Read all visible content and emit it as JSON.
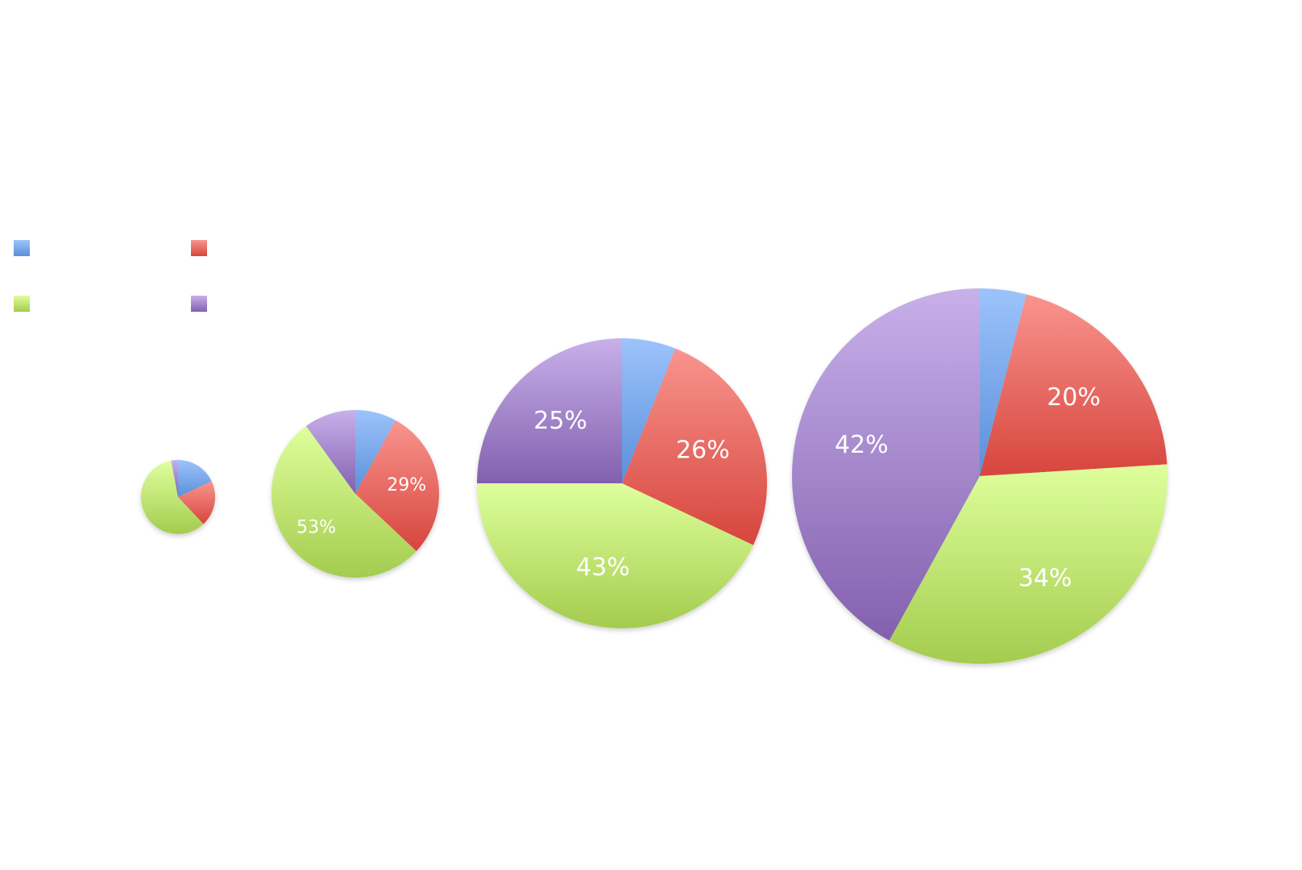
{
  "chart_data": [
    {
      "type": "pie",
      "slices": [
        {
          "series": 1,
          "value": 18,
          "label": ""
        },
        {
          "series": 2,
          "value": 20,
          "label": ""
        },
        {
          "series": 3,
          "value": 59,
          "label": ""
        },
        {
          "series": 4,
          "value": 3,
          "label": ""
        }
      ]
    },
    {
      "type": "pie",
      "slices": [
        {
          "series": 1,
          "value": 8,
          "label": ""
        },
        {
          "series": 2,
          "value": 29,
          "label": "29%"
        },
        {
          "series": 3,
          "value": 53,
          "label": "53%"
        },
        {
          "series": 4,
          "value": 10,
          "label": ""
        }
      ]
    },
    {
      "type": "pie",
      "slices": [
        {
          "series": 1,
          "value": 6,
          "label": ""
        },
        {
          "series": 2,
          "value": 26,
          "label": "26%"
        },
        {
          "series": 3,
          "value": 43,
          "label": "43%"
        },
        {
          "series": 4,
          "value": 25,
          "label": "25%"
        }
      ]
    },
    {
      "type": "pie",
      "slices": [
        {
          "series": 1,
          "value": 4,
          "label": ""
        },
        {
          "series": 2,
          "value": 20,
          "label": "20%"
        },
        {
          "series": 3,
          "value": 34,
          "label": "34%"
        },
        {
          "series": 4,
          "value": 42,
          "label": "42%"
        }
      ]
    }
  ],
  "legend": {
    "placement": "left",
    "items": [
      {
        "series": 1,
        "label": "",
        "color": "#5b8fd9"
      },
      {
        "series": 2,
        "label": "",
        "color": "#d9534a"
      },
      {
        "series": 3,
        "label": "",
        "color": "#a6cc52"
      },
      {
        "series": 4,
        "label": "",
        "color": "#8e6ab5"
      }
    ]
  },
  "colors": {
    "series1": {
      "light": "#9cc3fb",
      "dark": "#5b8fd9"
    },
    "series2": {
      "light": "#f9948e",
      "dark": "#d6453d"
    },
    "series3": {
      "light": "#deff9c",
      "dark": "#a4cc4e"
    },
    "series4": {
      "light": "#c8b0ea",
      "dark": "#8260ae"
    }
  }
}
